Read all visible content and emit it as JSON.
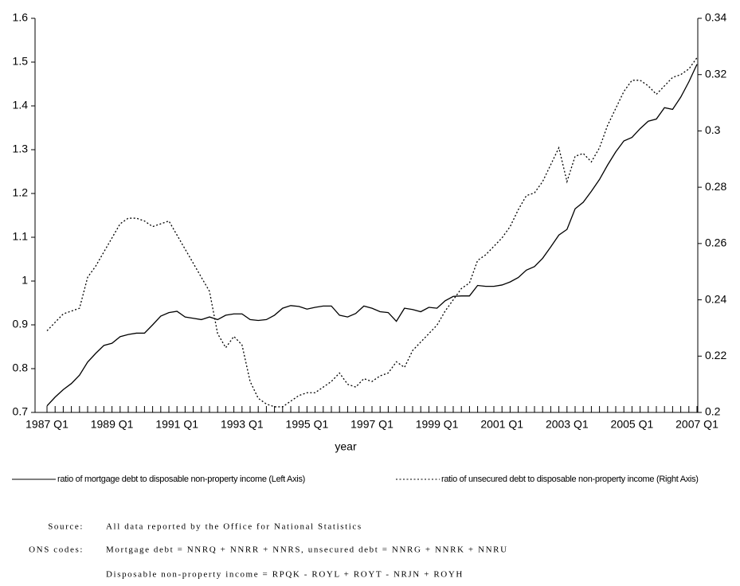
{
  "chart_data": {
    "type": "line",
    "x_label": "year",
    "categories": [
      "1987 Q1",
      null,
      null,
      null,
      null,
      null,
      null,
      null,
      "1989 Q1",
      null,
      null,
      null,
      null,
      null,
      null,
      null,
      "1991 Q1",
      null,
      null,
      null,
      null,
      null,
      null,
      null,
      "1993 Q1",
      null,
      null,
      null,
      null,
      null,
      null,
      null,
      "1995 Q1",
      null,
      null,
      null,
      null,
      null,
      null,
      null,
      "1997 Q1",
      null,
      null,
      null,
      null,
      null,
      null,
      null,
      "1999 Q1",
      null,
      null,
      null,
      null,
      null,
      null,
      null,
      "2001 Q1",
      null,
      null,
      null,
      null,
      null,
      null,
      null,
      "2003 Q1",
      null,
      null,
      null,
      null,
      null,
      null,
      null,
      "2005 Q1",
      null,
      null,
      null,
      null,
      null,
      null,
      null,
      "2007 Q1"
    ],
    "ylim": [
      0.7,
      1.6
    ],
    "yticks": [
      0.7,
      0.8,
      0.9,
      1,
      1.1,
      1.2,
      1.3,
      1.4,
      1.5,
      1.6
    ],
    "y2lim": [
      0.2,
      0.34
    ],
    "y2ticks": [
      0.2,
      0.22,
      0.24,
      0.26,
      0.28,
      0.3,
      0.32,
      0.34
    ],
    "legend": "bottom",
    "series": [
      {
        "name": "ratio of mortgage debt to disposable non-property income (Left Axis)",
        "color": "#000000",
        "line_style": "solid",
        "values": [
          0.715,
          0.735,
          0.752,
          0.766,
          0.785,
          0.815,
          0.835,
          0.853,
          0.858,
          0.873,
          0.878,
          0.881,
          0.881,
          0.9,
          0.92,
          0.928,
          0.931,
          0.918,
          0.915,
          0.912,
          0.918,
          0.912,
          0.922,
          0.925,
          0.925,
          0.912,
          0.91,
          0.912,
          0.922,
          0.938,
          0.944,
          0.942,
          0.936,
          0.94,
          0.943,
          0.943,
          0.922,
          0.918,
          0.926,
          0.943,
          0.938,
          0.93,
          0.928,
          0.908,
          0.938,
          0.935,
          0.93,
          0.94,
          0.938,
          0.955,
          0.965,
          0.966,
          0.966,
          0.99,
          0.988,
          0.988,
          0.991,
          0.998,
          1.008,
          1.025,
          1.033,
          1.052,
          1.078,
          1.105,
          1.118,
          1.165,
          1.18,
          1.205,
          1.232,
          1.265,
          1.295,
          1.32,
          1.328,
          1.348,
          1.365,
          1.37,
          1.396,
          1.392,
          1.42,
          1.455,
          1.495
        ]
      },
      {
        "name": "ratio of unsecured debt to disposable non-property income (Right Axis)",
        "color": "#000000",
        "line_style": "dotted",
        "axis": "y2",
        "values": [
          0.229,
          0.232,
          0.235,
          0.236,
          0.237,
          0.248,
          0.252,
          0.257,
          0.262,
          0.267,
          0.269,
          0.269,
          0.268,
          0.266,
          0.267,
          0.268,
          0.263,
          0.258,
          0.253,
          0.248,
          0.243,
          0.228,
          0.223,
          0.227,
          0.224,
          0.211,
          0.205,
          0.203,
          0.202,
          0.202,
          0.204,
          0.206,
          0.207,
          0.207,
          0.209,
          0.211,
          0.214,
          0.21,
          0.209,
          0.212,
          0.211,
          0.213,
          0.214,
          0.218,
          0.216,
          0.222,
          0.225,
          0.228,
          0.231,
          0.236,
          0.24,
          0.244,
          0.246,
          0.254,
          0.256,
          0.259,
          0.262,
          0.266,
          0.272,
          0.277,
          0.278,
          0.282,
          0.288,
          0.294,
          0.282,
          0.291,
          0.292,
          0.289,
          0.294,
          0.302,
          0.308,
          0.314,
          0.318,
          0.318,
          0.316,
          0.313,
          0.316,
          0.319,
          0.32,
          0.322,
          0.326
        ]
      }
    ]
  },
  "notes": {
    "source_label": "Source:",
    "source": "All data reported by the Office for National Statistics",
    "codes_label": "ONS codes:",
    "codes": [
      "Mortgage debt = NNRQ + NNRR + NNRS, unsecured debt = NNRG + NNRK + NNRU",
      "Disposable non-property income = RPQK - ROYL + ROYT - NRJN + ROYH"
    ]
  }
}
